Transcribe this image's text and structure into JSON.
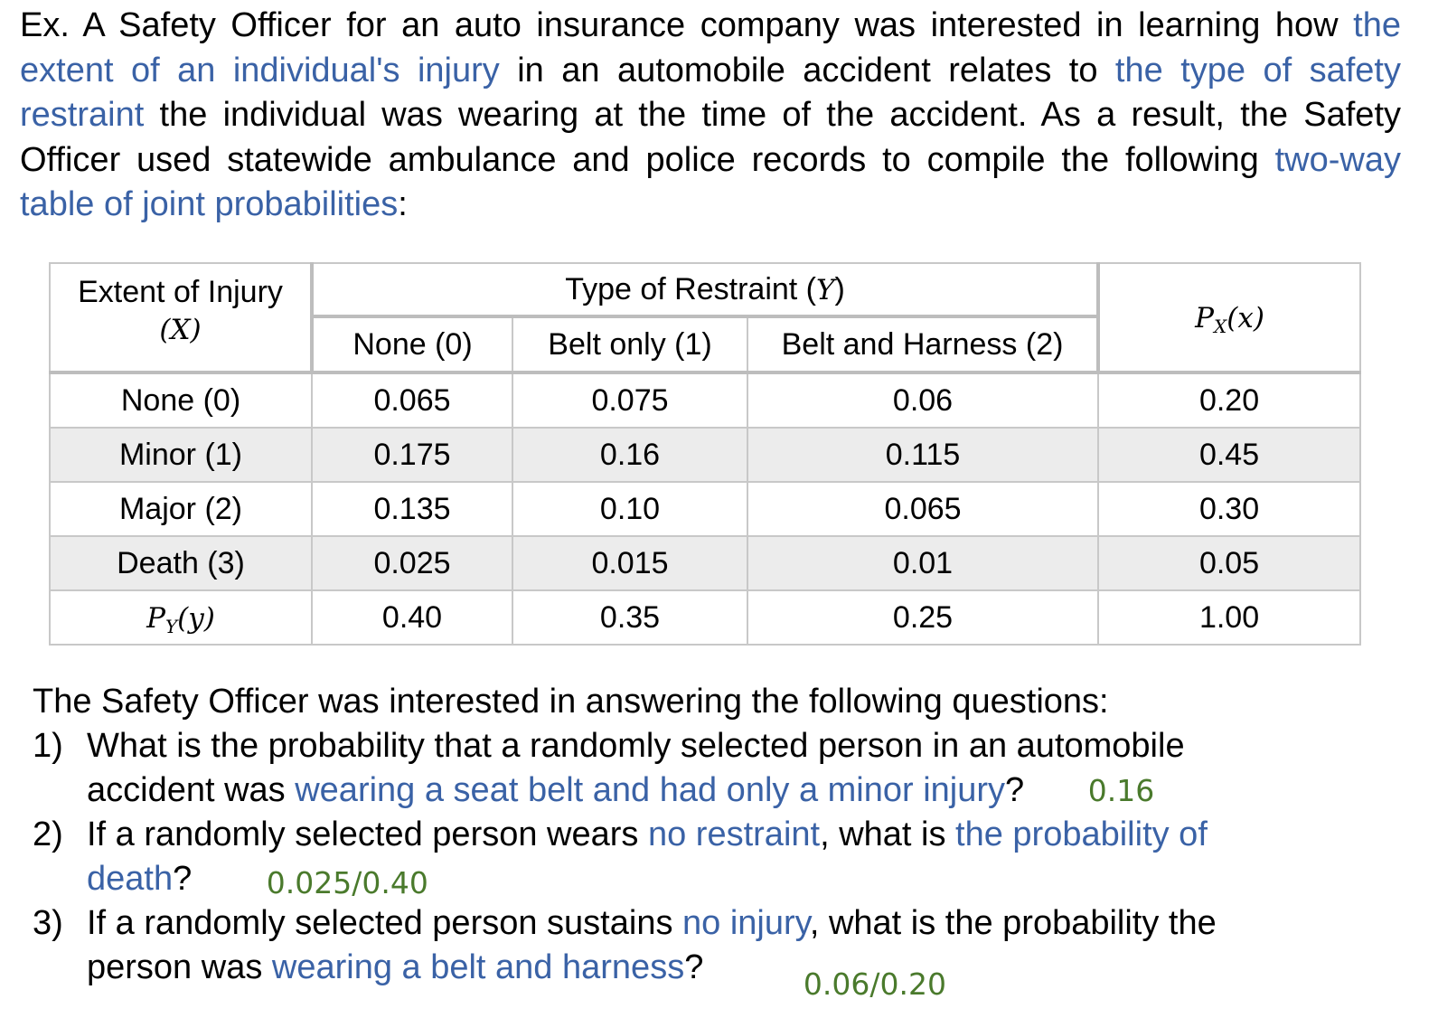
{
  "intro": {
    "p1": "Ex. A Safety Officer for an auto insurance company was interested in learning how ",
    "h1": "the extent of an individual's injury",
    "p2": " in an automobile accident relates to ",
    "h2": "the type of safety restraint",
    "p3": " the individual was wearing at the time of the accident. As a result, the Safety Officer used statewide ambulance and police records to compile the following ",
    "h3": "two-way table of joint probabilities",
    "p4": ":"
  },
  "table": {
    "row_header_title": "Extent of Injury",
    "row_header_var": "(X)",
    "col_group_title": "Type of Restraint (",
    "col_group_var": "Y",
    "col_group_close": ")",
    "marginal_x_label": "P",
    "marginal_x_sub": "X",
    "marginal_x_arg": "(x)",
    "marginal_y_label": "P",
    "marginal_y_sub": "Y",
    "marginal_y_arg": "(y)",
    "columns": [
      "None (0)",
      "Belt only (1)",
      "Belt and Harness (2)"
    ],
    "rows": [
      {
        "label": "None (0)",
        "values": [
          "0.065",
          "0.075",
          "0.06"
        ],
        "px": "0.20"
      },
      {
        "label": "Minor (1)",
        "values": [
          "0.175",
          "0.16",
          "0.115"
        ],
        "px": "0.45"
      },
      {
        "label": "Major (2)",
        "values": [
          "0.135",
          "0.10",
          "0.065"
        ],
        "px": "0.30"
      },
      {
        "label": "Death (3)",
        "values": [
          "0.025",
          "0.015",
          "0.01"
        ],
        "px": "0.05"
      }
    ],
    "py_values": [
      "0.40",
      "0.35",
      "0.25"
    ],
    "total": "1.00"
  },
  "questions": {
    "lead": "The Safety Officer was interested in answering the following questions:",
    "q1": {
      "num": "1)",
      "a": "What is the probability that a randomly selected person in an automobile",
      "b": "accident was ",
      "h": "wearing a seat belt and had only a minor injury",
      "c": "?",
      "answer": "0.16"
    },
    "q2": {
      "num": "2)",
      "a": "If a randomly selected person wears ",
      "h1": "no restraint",
      "b": ", what is ",
      "h2": "the probability of",
      "h3": "death",
      "c": "?",
      "answer": "0.025/0.40"
    },
    "q3": {
      "num": "3)",
      "a": "If a randomly selected person sustains ",
      "h1": "no injury",
      "b": ", what is the probability the",
      "c": "person was ",
      "h2": "wearing a belt and harness",
      "d": "?",
      "answer": "0.06/0.20"
    }
  }
}
